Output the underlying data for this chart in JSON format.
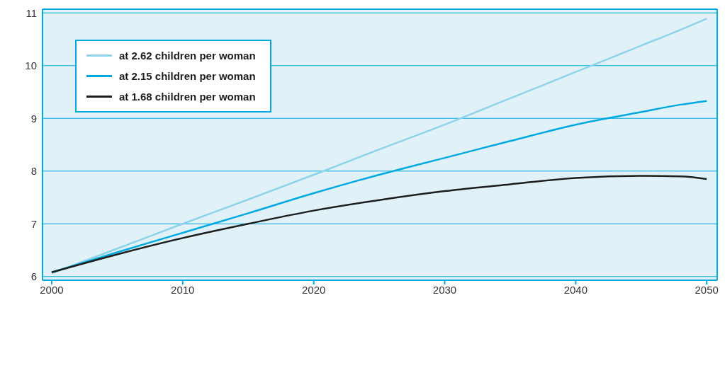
{
  "chart_data": {
    "type": "line",
    "x": [
      2000,
      2005,
      2010,
      2015,
      2020,
      2025,
      2030,
      2035,
      2040,
      2045,
      2048,
      2050
    ],
    "series": [
      {
        "name": "at 2.62 children per woman",
        "color": "#8fd3ea",
        "values": [
          6.06,
          6.53,
          7.0,
          7.46,
          7.93,
          8.41,
          8.88,
          9.38,
          9.88,
          10.38,
          10.68,
          10.89
        ]
      },
      {
        "name": "at 2.15 children per woman",
        "color": "#00a9e0",
        "values": [
          6.08,
          6.46,
          6.83,
          7.2,
          7.58,
          7.93,
          8.25,
          8.57,
          8.88,
          9.12,
          9.26,
          9.33
        ]
      },
      {
        "name": "at 1.68 children per woman",
        "color": "#1d1d1b",
        "values": [
          6.08,
          6.42,
          6.73,
          7.0,
          7.25,
          7.45,
          7.62,
          7.75,
          7.87,
          7.91,
          7.9,
          7.85
        ]
      }
    ],
    "xlim": [
      1999.3,
      2050.8
    ],
    "xticks": [
      2000,
      2010,
      2020,
      2030,
      2040,
      2050
    ],
    "ylim": [
      5.93,
      11.07
    ],
    "yticks": [
      6,
      7,
      8,
      9,
      10,
      11
    ],
    "grid": "y",
    "legend": "top left",
    "marker": "none",
    "line_style": "solid"
  }
}
